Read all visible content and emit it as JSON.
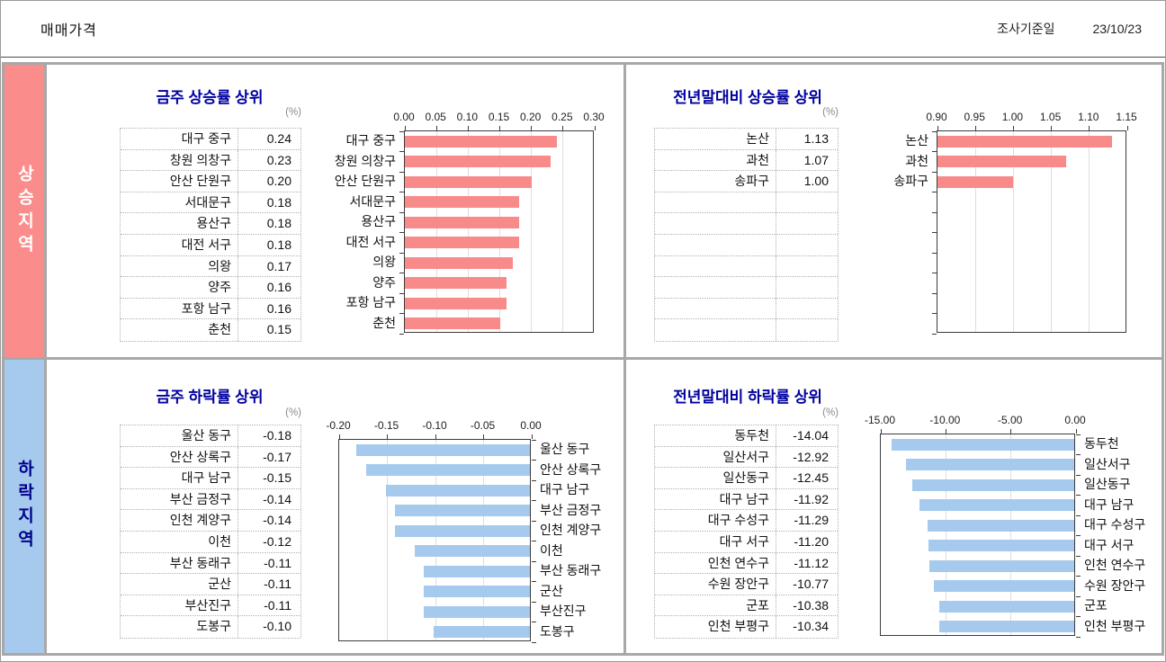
{
  "header": {
    "title": "매매가격",
    "survey_label": "조사기준일",
    "survey_date": "23/10/23"
  },
  "sidebar": {
    "rising_label": "상승지역",
    "falling_label": "하락지역"
  },
  "colors": {
    "rising_accent": "#f98a8a",
    "falling_accent": "#a6c9ee",
    "title_color": "#0000a0",
    "divider": "#a8a8a8"
  },
  "chart_data": [
    {
      "type": "bar",
      "orientation": "horizontal",
      "title": "금주 상승률 상위",
      "unit": "(%)",
      "categories": [
        "대구 중구",
        "창원 의창구",
        "안산 단원구",
        "서대문구",
        "용산구",
        "대전 서구",
        "의왕",
        "양주",
        "포항 남구",
        "춘천"
      ],
      "values": [
        0.24,
        0.23,
        0.2,
        0.18,
        0.18,
        0.18,
        0.17,
        0.16,
        0.16,
        0.15
      ],
      "axis": {
        "min": 0.0,
        "max": 0.3,
        "ticks": [
          "0.00",
          "0.05",
          "0.10",
          "0.15",
          "0.20",
          "0.25",
          "0.30"
        ]
      },
      "bars_from": "left",
      "labels_side": "left",
      "bar_color": "#f98a8a",
      "slots": 10,
      "grid": true,
      "legend": "none"
    },
    {
      "type": "bar",
      "orientation": "horizontal",
      "title": "전년말대비 상승률 상위",
      "unit": "(%)",
      "categories": [
        "논산",
        "과천",
        "송파구"
      ],
      "values": [
        1.13,
        1.07,
        1.0
      ],
      "axis": {
        "min": 0.9,
        "max": 1.15,
        "ticks": [
          "0.90",
          "0.95",
          "1.00",
          "1.05",
          "1.10",
          "1.15"
        ]
      },
      "bars_from": "left",
      "labels_side": "left",
      "bar_color": "#f98a8a",
      "slots": 10,
      "grid": true,
      "legend": "none"
    },
    {
      "type": "bar",
      "orientation": "horizontal",
      "title": "금주 하락률 상위",
      "unit": "(%)",
      "categories": [
        "울산 동구",
        "안산 상록구",
        "대구 남구",
        "부산 금정구",
        "인천 계양구",
        "이천",
        "부산 동래구",
        "군산",
        "부산진구",
        "도봉구"
      ],
      "values": [
        -0.18,
        -0.17,
        -0.15,
        -0.14,
        -0.14,
        -0.12,
        -0.11,
        -0.11,
        -0.11,
        -0.1
      ],
      "axis": {
        "min": -0.2,
        "max": 0.0,
        "ticks": [
          "-0.20",
          "-0.15",
          "-0.10",
          "-0.05",
          "0.00"
        ]
      },
      "bars_from": "right",
      "labels_side": "right",
      "bar_color": "#a6c9ee",
      "slots": 10,
      "grid": true,
      "legend": "none"
    },
    {
      "type": "bar",
      "orientation": "horizontal",
      "title": "전년말대비 하락률 상위",
      "unit": "(%)",
      "categories": [
        "동두천",
        "일산서구",
        "일산동구",
        "대구 남구",
        "대구 수성구",
        "대구 서구",
        "인천 연수구",
        "수원 장안구",
        "군포",
        "인천 부평구"
      ],
      "values": [
        -14.04,
        -12.92,
        -12.45,
        -11.92,
        -11.29,
        -11.2,
        -11.12,
        -10.77,
        -10.38,
        -10.34
      ],
      "axis": {
        "min": -15.0,
        "max": 0.0,
        "ticks": [
          "-15.00",
          "-10.00",
          "-5.00",
          "0.00"
        ]
      },
      "bars_from": "right",
      "labels_side": "right",
      "bar_color": "#a6c9ee",
      "slots": 10,
      "grid": true,
      "legend": "none"
    }
  ]
}
